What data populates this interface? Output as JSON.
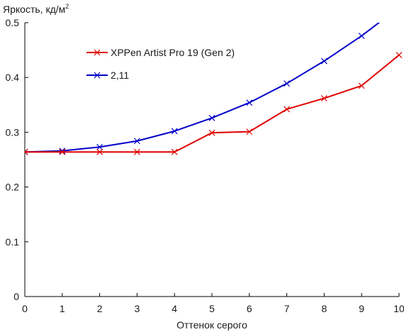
{
  "chart_data": {
    "type": "line",
    "title": "",
    "ylabel": "Яркость, кд/м",
    "ylabel_superscript": "2",
    "xlabel": "Оттенок серого",
    "x": [
      0,
      1,
      2,
      3,
      4,
      5,
      6,
      7,
      8,
      9,
      10
    ],
    "xlim": [
      0,
      10
    ],
    "ylim": [
      0,
      0.5
    ],
    "x_ticks": [
      "0",
      "1",
      "2",
      "3",
      "4",
      "5",
      "6",
      "7",
      "8",
      "9",
      "10"
    ],
    "y_ticks": [
      0,
      0.1,
      0.2,
      0.3,
      0.4,
      0.5
    ],
    "y_tick_labels": [
      "0",
      "0.1",
      "0.2",
      "0.3",
      "0.4",
      "0.5"
    ],
    "grid": false,
    "legend_position": "top-left",
    "series": [
      {
        "name": "XPPen Artist Pro 19 (Gen 2)",
        "color": "#e00000",
        "marker": "x",
        "values": [
          0.264,
          0.264,
          0.264,
          0.264,
          0.264,
          0.299,
          0.301,
          0.342,
          0.362,
          0.385,
          0.441
        ]
      },
      {
        "name": "2,11",
        "color": "#0000c8",
        "marker": "x",
        "values": [
          0.264,
          0.266,
          0.273,
          0.284,
          0.302,
          0.326,
          0.354,
          0.389,
          0.43,
          0.476,
          0.528
        ]
      }
    ]
  }
}
